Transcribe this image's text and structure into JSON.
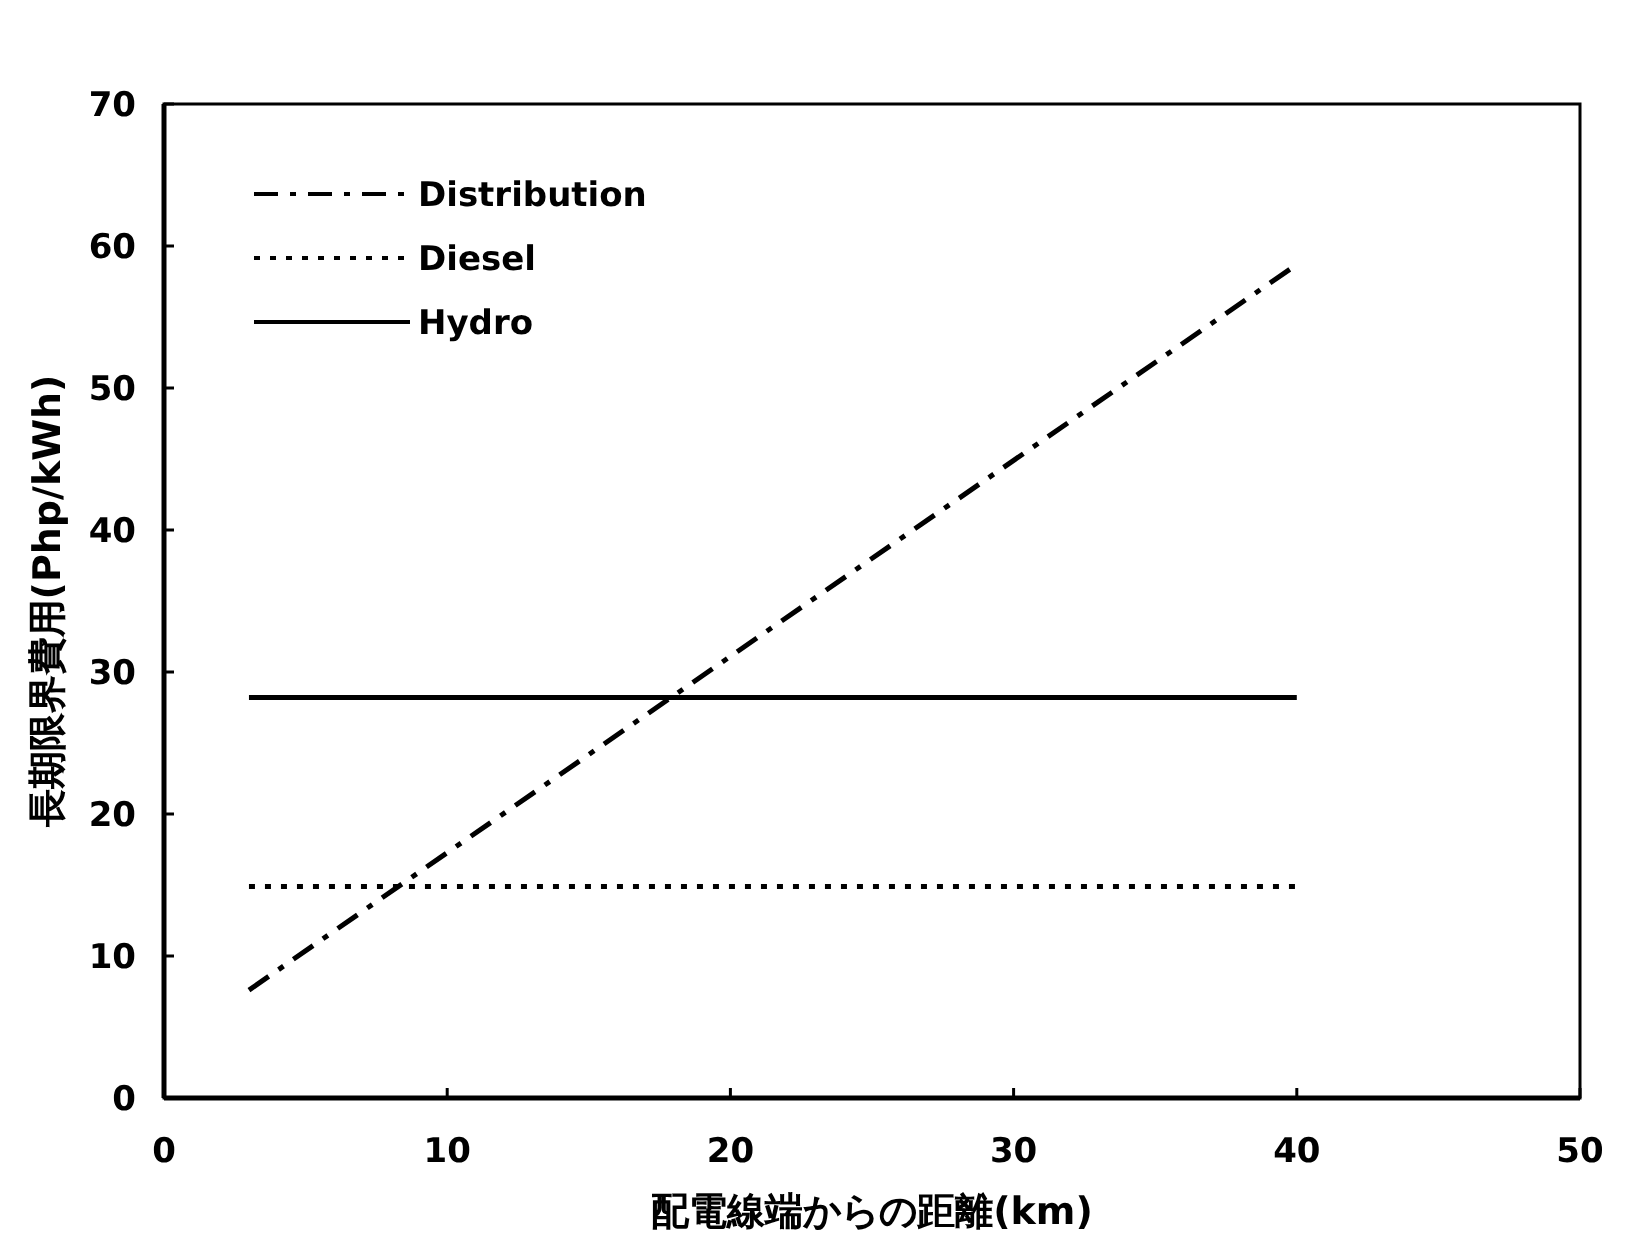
{
  "chart_data": {
    "type": "line",
    "xlabel": "配電線端からの距離(km)",
    "ylabel": "長期限界費用(Php/kWh)",
    "xlim": [
      0,
      50
    ],
    "xticks": [
      0,
      10,
      20,
      30,
      40,
      50
    ],
    "ylim": [
      0,
      70
    ],
    "yticks": [
      0,
      10,
      20,
      30,
      40,
      50,
      60,
      70
    ],
    "grid": false,
    "legend": "top left",
    "marker": "none",
    "series": [
      {
        "name": "Distribution",
        "color": "#000000",
        "line_style": "dashdot",
        "x": [
          3,
          20,
          40
        ],
        "values": [
          7.6,
          31.1,
          58.7
        ]
      },
      {
        "name": "Diesel",
        "color": "#000000",
        "line_style": "dotted",
        "x": [
          3,
          40
        ],
        "values": [
          14.9,
          14.9
        ]
      },
      {
        "name": "Hydro",
        "color": "#000000",
        "line_style": "solid",
        "x": [
          3,
          40
        ],
        "values": [
          28.2,
          28.2
        ]
      }
    ]
  }
}
